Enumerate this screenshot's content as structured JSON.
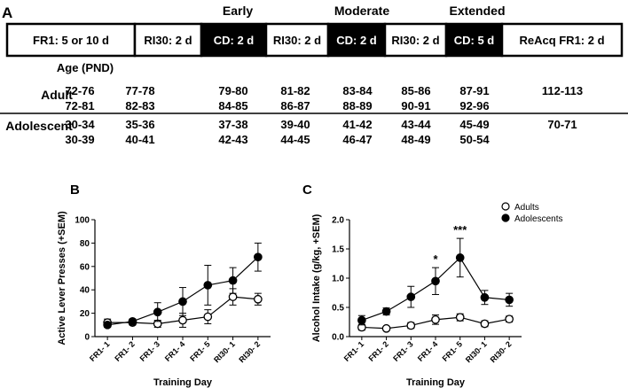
{
  "panel_a": {
    "label": "A",
    "phase_headers": [
      "Early",
      "Moderate",
      "Extended"
    ],
    "boxes": [
      "FR1: 5 or 10 d",
      "RI30: 2 d",
      "CD: 2 d",
      "RI30: 2 d",
      "CD: 2 d",
      "RI30: 2 d",
      "CD: 5 d",
      "ReAcq FR1: 2 d"
    ],
    "age_label": "Age (PND)",
    "adult_label": "Adult",
    "adolescent_label": "Adolescent",
    "adult_rows": [
      [
        "72-76",
        "77-78",
        "79-80",
        "81-82",
        "83-84",
        "85-86",
        "87-91",
        "112-113"
      ],
      [
        "72-81",
        "82-83",
        "84-85",
        "86-87",
        "88-89",
        "90-91",
        "92-96",
        ""
      ]
    ],
    "adolescent_rows": [
      [
        "30-34",
        "35-36",
        "37-38",
        "39-40",
        "41-42",
        "43-44",
        "45-49",
        "70-71"
      ],
      [
        "30-39",
        "40-41",
        "42-43",
        "44-45",
        "46-47",
        "48-49",
        "50-54",
        ""
      ]
    ]
  },
  "chart_data": [
    {
      "panel": "B",
      "type": "line",
      "title": "",
      "xlabel": "Training Day",
      "ylabel": "Active Lever Presses  (+SEM)",
      "categories": [
        "FR1- 1",
        "FR1- 2",
        "FR1- 3",
        "FR1- 4",
        "FR1- 5",
        "RI30- 1",
        "RI30- 2"
      ],
      "ylim": [
        0,
        100
      ],
      "yticks": [
        "0",
        "20",
        "40",
        "60",
        "80",
        "100"
      ],
      "series": [
        {
          "name": "Adults",
          "marker": "open-circle",
          "values": [
            12,
            12,
            11,
            14,
            17,
            34,
            32
          ],
          "sem": [
            3,
            2,
            3,
            6,
            6,
            7,
            5
          ]
        },
        {
          "name": "Adolescents",
          "marker": "filled-circle",
          "values": [
            10,
            13,
            21,
            30,
            44,
            48,
            68
          ],
          "sem": [
            2,
            2,
            8,
            12,
            17,
            11,
            12
          ]
        }
      ]
    },
    {
      "panel": "C",
      "type": "line",
      "title": "",
      "xlabel": "Training Day",
      "ylabel": "Alcohol Intake (g/kg, +SEM)",
      "categories": [
        "FR1- 1",
        "FR1- 2",
        "FR1- 3",
        "FR1- 4",
        "FR1- 5",
        "RI30- 1",
        "RI30- 2"
      ],
      "ylim": [
        0,
        2.0
      ],
      "yticks": [
        "0.0",
        "0.5",
        "1.0",
        "1.5",
        "2.0"
      ],
      "legend": [
        "Adults",
        "Adolescents"
      ],
      "legend_position": "top-right",
      "annotations": [
        {
          "category": "FR1- 4",
          "text": "*"
        },
        {
          "category": "FR1- 5",
          "text": "***"
        }
      ],
      "series": [
        {
          "name": "Adults",
          "marker": "open-circle",
          "values": [
            0.16,
            0.14,
            0.19,
            0.29,
            0.33,
            0.22,
            0.3
          ],
          "sem": [
            0.05,
            0.03,
            0.05,
            0.08,
            0.06,
            0.05,
            0.05
          ]
        },
        {
          "name": "Adolescents",
          "marker": "filled-circle",
          "values": [
            0.28,
            0.43,
            0.68,
            0.95,
            1.35,
            0.67,
            0.63
          ],
          "sem": [
            0.08,
            0.06,
            0.18,
            0.23,
            0.33,
            0.12,
            0.11
          ]
        }
      ]
    }
  ]
}
